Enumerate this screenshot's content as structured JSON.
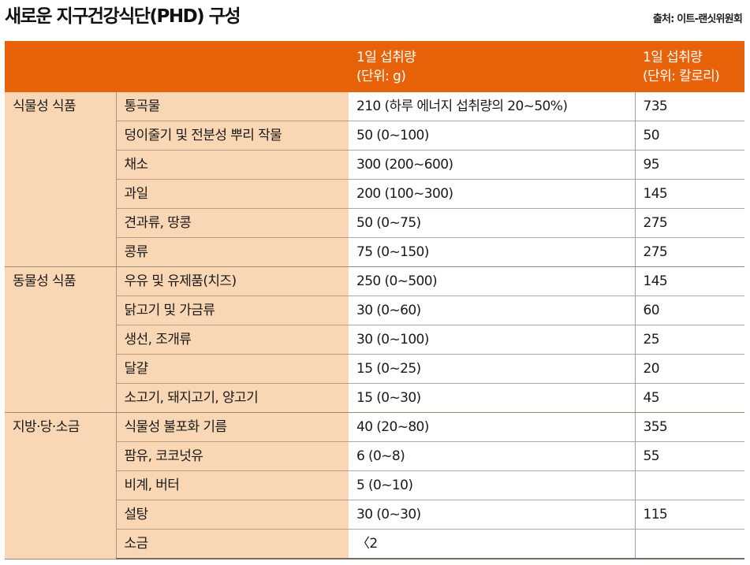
{
  "title": "새로운 지구건강식단(PHD) 구성",
  "source": "출처: 이트-랜싯위원회",
  "table": {
    "headers": {
      "category": "",
      "item": "",
      "grams_line1": "1일 섭취량",
      "grams_line2": "(단위: g)",
      "kcal_line1": "1일 섭취량",
      "kcal_line2": "(단위: 칼로리)"
    },
    "groups": [
      {
        "category": "식물성 식품",
        "rows": [
          {
            "item": "통곡물",
            "grams": "210 (하루 에너지 섭취량의 20~50%)",
            "kcal": "735"
          },
          {
            "item": "덩이줄기 및 전분성 뿌리 작물",
            "grams": "50 (0~100)",
            "kcal": "50"
          },
          {
            "item": "채소",
            "grams": "300 (200~600)",
            "kcal": "95"
          },
          {
            "item": "과일",
            "grams": "200 (100~300)",
            "kcal": "145"
          },
          {
            "item": "견과류, 땅콩",
            "grams": "50 (0~75)",
            "kcal": "275"
          },
          {
            "item": "콩류",
            "grams": "75 (0~150)",
            "kcal": "275"
          }
        ]
      },
      {
        "category": "동물성 식품",
        "rows": [
          {
            "item": "우유 및 유제품(치즈)",
            "grams": "250 (0~500)",
            "kcal": "145"
          },
          {
            "item": "닭고기 및 가금류",
            "grams": "30 (0~60)",
            "kcal": "60"
          },
          {
            "item": "생선, 조개류",
            "grams": "30 (0~100)",
            "kcal": "25"
          },
          {
            "item": "달걀",
            "grams": "15 (0~25)",
            "kcal": "20"
          },
          {
            "item": "소고기, 돼지고기, 양고기",
            "grams": "15 (0~30)",
            "kcal": "45"
          }
        ]
      },
      {
        "category": "지방·당·소금",
        "rows": [
          {
            "item": "식물성 불포화 기름",
            "grams": "40 (20~80)",
            "kcal": "355"
          },
          {
            "item": "팜유, 코코넛유",
            "grams": "6 (0~8)",
            "kcal": "55"
          },
          {
            "item": "비계, 버터",
            "grams": "5 (0~10)",
            "kcal": ""
          },
          {
            "item": "설탕",
            "grams": "30 (0~30)",
            "kcal": "115"
          },
          {
            "item": "소금",
            "grams": "〈2",
            "kcal": ""
          }
        ]
      }
    ]
  },
  "colors": {
    "header_bg": "#e8620a",
    "header_text": "#ffffff",
    "label_bg": "#f9d6b4",
    "value_bg": "#ffffff"
  }
}
